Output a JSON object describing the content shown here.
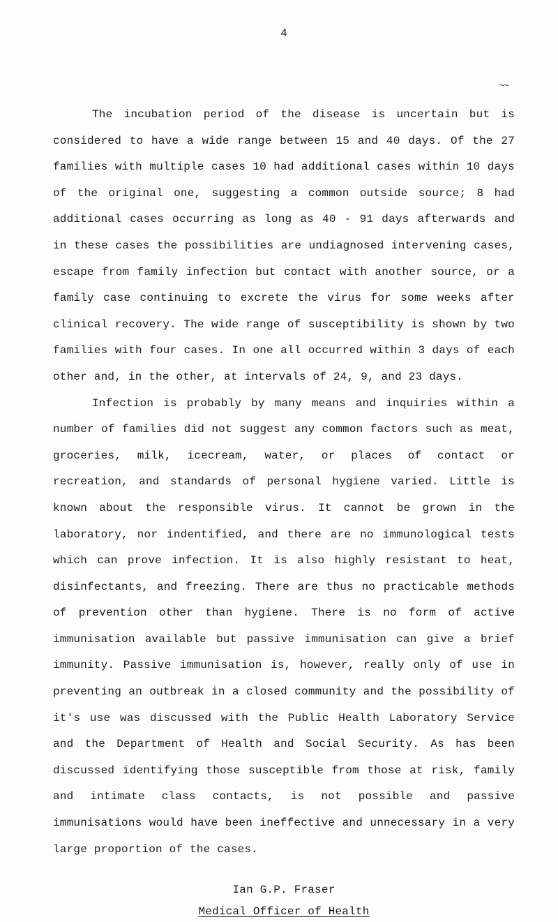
{
  "page_number": "4",
  "decorative_mark": "~~",
  "paragraphs": [
    "The incubation period of the disease is uncertain but is considered to have a wide range between 15 and 40 days. Of the 27 families with multiple cases 10 had additional cases within 10 days of the original one, suggesting a common outside source; 8 had additional cases occurring as long as 40 - 91 days afterwards and in these cases the possibilities are undiagnosed intervening cases, escape from family infection but contact with another source, or a family case continuing to excrete the virus for some weeks after clinical recovery. The wide range of susceptibility is shown by two families with four cases. In one all occurred within 3 days of each other and, in the other, at intervals of 24, 9, and 23 days.",
    "Infection is probably by many means and inquiries within a number of families did not suggest any common factors such as meat, groceries, milk, icecream, water, or places of contact or recreation, and standards of personal hygiene varied. Little is known about the responsible virus. It cannot be grown in the laboratory, nor indentified, and there are no immunological tests which can prove infection. It is also highly resistant to heat, disinfectants, and freezing. There are thus no practicable methods of prevention other than hygiene. There is no form of active immunisation available but passive immunisation can give a brief immunity. Passive immunisation is, however, really only of use in preventing an outbreak in a closed community and the possibility of it's use was discussed with the Public Health Laboratory Service and the Department of Health and Social Security. As has been discussed identifying those susceptible from those at risk, family and intimate class contacts, is not possible and passive immunisations would have been ineffective and unnecessary in a very large proportion of the cases."
  ],
  "signature": {
    "author": "Ian G.P. Fraser",
    "title": "Medical Officer of Health"
  }
}
